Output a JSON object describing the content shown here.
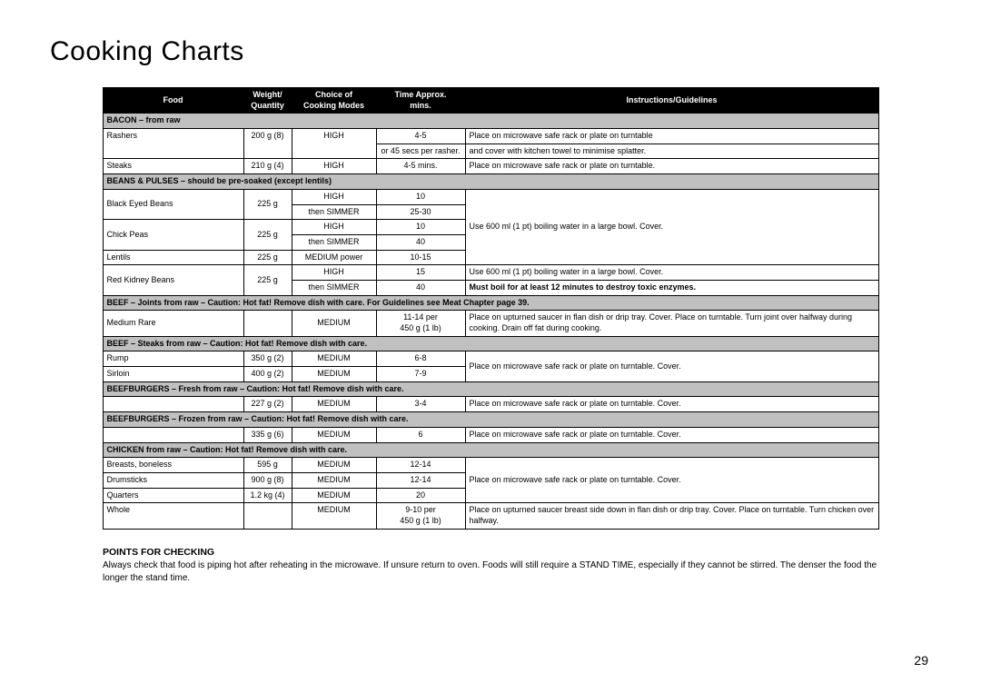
{
  "title": "Cooking Charts",
  "columns": {
    "food": "Food",
    "weight_l1": "Weight/",
    "weight_l2": "Quantity",
    "mode_l1": "Choice of",
    "mode_l2": "Cooking Modes",
    "time_l1": "Time Approx.",
    "time_l2": "mins.",
    "instructions": "Instructions/Guidelines"
  },
  "sections": {
    "bacon": "BACON – from raw",
    "beans": "BEANS & PULSES – should be pre-soaked (except lentils)",
    "beef_joints": "BEEF – Joints from raw – Caution: Hot fat! Remove dish with care. For Guidelines see Meat Chapter page 39.",
    "beef_steaks": "BEEF – Steaks from raw – Caution: Hot fat! Remove dish with care.",
    "burgers_fresh": "BEEFBURGERS – Fresh from raw – Caution: Hot fat! Remove dish with care.",
    "burgers_frozen": "BEEFBURGERS – Frozen from raw – Caution: Hot fat! Remove dish with care.",
    "chicken": "CHICKEN from raw – Caution: Hot fat! Remove dish with care."
  },
  "rows": {
    "rashers": {
      "food": "Rashers",
      "weight": "200 g (8)",
      "mode": "HIGH",
      "time_l1": "4-5",
      "time_l2": "or 45 secs per rasher.",
      "inst_l1": "Place on microwave safe rack or plate on turntable",
      "inst_l2": "and cover with kitchen towel to minimise splatter."
    },
    "steaks": {
      "food": "Steaks",
      "weight": "210 g (4)",
      "mode": "HIGH",
      "time": "4-5 mins.",
      "inst": "Place on microwave safe rack or plate on turntable."
    },
    "blackeyed": {
      "food": "Black Eyed Beans",
      "weight": "225 g",
      "mode1": "HIGH",
      "time1": "10",
      "mode2": "then SIMMER",
      "time2": "25-30"
    },
    "chickpeas": {
      "food": "Chick Peas",
      "weight": "225 g",
      "mode1": "HIGH",
      "time1": "10",
      "mode2": "then SIMMER",
      "time2": "40"
    },
    "beans_inst": "Use 600 ml (1 pt) boiling water in a large bowl. Cover.",
    "lentils": {
      "food": "Lentils",
      "weight": "225 g",
      "mode": "MEDIUM power",
      "time": "10-15"
    },
    "kidney": {
      "food": "Red Kidney Beans",
      "weight": "225 g",
      "mode1": "HIGH",
      "time1": "15",
      "mode2": "then SIMMER",
      "time2": "40",
      "inst1": "Use 600 ml (1 pt) boiling water in a large bowl. Cover.",
      "inst2": "Must boil for at least 12 minutes to destroy toxic enzymes."
    },
    "medrare": {
      "food": "Medium Rare",
      "mode": "MEDIUM",
      "time_l1": "11-14 per",
      "time_l2": "450 g (1 lb)",
      "inst": "Place on upturned saucer in flan dish or drip tray. Cover. Place on turntable. Turn joint over halfway during cooking. Drain off fat during cooking."
    },
    "rump": {
      "food": "Rump",
      "weight": "350 g (2)",
      "mode": "MEDIUM",
      "time": "6-8"
    },
    "sirloin": {
      "food": "Sirloin",
      "weight": "400 g (2)",
      "mode": "MEDIUM",
      "time": "7-9"
    },
    "steak_inst": "Place on microwave safe rack or plate on turntable. Cover.",
    "burger_fresh": {
      "weight": "227 g (2)",
      "mode": "MEDIUM",
      "time": "3-4",
      "inst": "Place on microwave safe rack or plate on turntable. Cover."
    },
    "burger_frozen": {
      "weight": "335 g (6)",
      "mode": "MEDIUM",
      "time": "6",
      "inst": "Place on microwave safe rack or plate on turntable. Cover."
    },
    "breasts": {
      "food": "Breasts, boneless",
      "weight": "595 g",
      "mode": "MEDIUM",
      "time": "12-14"
    },
    "drumsticks": {
      "food": "Drumsticks",
      "weight": "900 g (8)",
      "mode": "MEDIUM",
      "time": "12-14"
    },
    "quarters": {
      "food": "Quarters",
      "weight": "1.2 kg (4)",
      "mode": "MEDIUM",
      "time": "20"
    },
    "chicken_inst": "Place on microwave safe rack or plate on turntable. Cover.",
    "whole": {
      "food": "Whole",
      "mode": "MEDIUM",
      "time_l1": "9-10 per",
      "time_l2": "450 g (1 lb)",
      "inst": "Place on upturned saucer breast side down in flan dish or drip tray. Cover. Place on turntable. Turn chicken over halfway."
    }
  },
  "points": {
    "heading": "POINTS FOR CHECKING",
    "body": "Always check that food is piping hot after reheating in the microwave. If unsure return to oven. Foods will still require a STAND TIME, especially if they cannot be stirred. The denser the food the longer the stand time."
  },
  "page_number": "29"
}
